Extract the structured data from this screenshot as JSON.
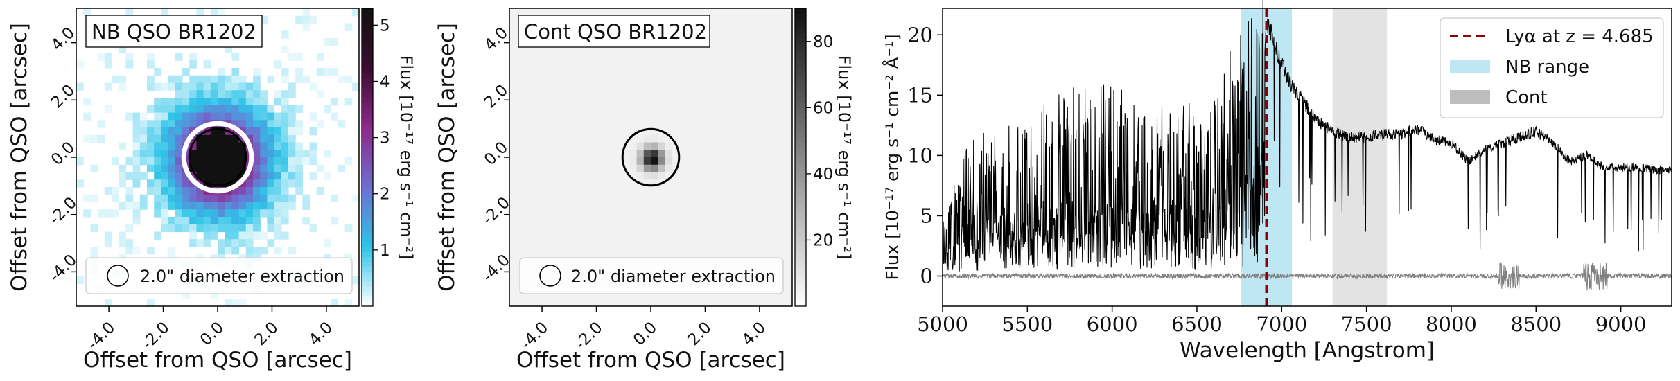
{
  "chart_data": [
    {
      "type": "heatmap",
      "panel_title": "NB QSO BR1202",
      "xlabel": "Offset from QSO [arcsec]",
      "ylabel": "Offset from QSO [arcsec]",
      "x_ticks": [
        "-4.0",
        "-2.0",
        "0.0",
        "2.0",
        "4.0"
      ],
      "y_ticks": [
        "-4.0",
        "-2.0",
        "0.0",
        "2.0",
        "4.0"
      ],
      "xlim": [
        -5.2,
        5.2
      ],
      "ylim": [
        -5.2,
        5.2
      ],
      "colorbar_label": "Flux [10⁻¹⁷ erg s⁻¹ cm⁻²]",
      "colorbar_ticks": [
        "1",
        "2",
        "3",
        "4",
        "5"
      ],
      "colorbar_range": [
        0,
        5.3
      ],
      "colormap": [
        "#ffffff",
        "#2ec4e8",
        "#6f6fd0",
        "#8b2a8a",
        "#3a0d2e",
        "#111111"
      ],
      "legend": "2.0\" diameter extraction",
      "aperture_diameter_arcsec": 2.0
    },
    {
      "type": "heatmap",
      "panel_title": "Cont QSO BR1202",
      "xlabel": "Offset from QSO [arcsec]",
      "ylabel": "Offset from QSO [arcsec]",
      "x_ticks": [
        "-4.0",
        "-2.0",
        "0.0",
        "2.0",
        "4.0"
      ],
      "y_ticks": [
        "-4.0",
        "-2.0",
        "0.0",
        "2.0",
        "4.0"
      ],
      "xlim": [
        -5.2,
        5.2
      ],
      "ylim": [
        -5.2,
        5.2
      ],
      "colorbar_label": "Flux [10⁻¹⁷ erg s⁻¹ cm⁻²]",
      "colorbar_ticks": [
        "20",
        "40",
        "60",
        "80"
      ],
      "colorbar_range": [
        0,
        90
      ],
      "colormap": [
        "#ffffff",
        "#111111"
      ],
      "legend": "2.0\" diameter extraction",
      "aperture_diameter_arcsec": 2.0
    },
    {
      "type": "line",
      "xlabel": "Wavelength [Angstrom]",
      "ylabel": "Flux [10⁻¹⁷ erg s⁻¹ cm⁻² Å⁻¹]",
      "xlim": [
        5000,
        9300
      ],
      "ylim": [
        -2.5,
        22.2
      ],
      "x_ticks": [
        "5000",
        "5500",
        "6000",
        "6500",
        "7000",
        "7500",
        "8000",
        "8500",
        "9000"
      ],
      "y_ticks": [
        "0",
        "5",
        "10",
        "15",
        "20"
      ],
      "legend": [
        {
          "label": "Lyα at z = 4.685",
          "color": "#8b0000",
          "style": "dashed"
        },
        {
          "label": "NB range",
          "color": "#bfe6f3",
          "style": "band"
        },
        {
          "label": "Cont",
          "color": "#bdbdbd",
          "style": "band"
        }
      ],
      "lya_wavelength": 6911,
      "nb_range": [
        6760,
        7060
      ],
      "cont_range": [
        7300,
        7590
      ],
      "series": [
        {
          "name": "spectrum",
          "color": "#000000",
          "x": [
            5000,
            5100,
            5200,
            5300,
            5400,
            5500,
            5600,
            5700,
            5800,
            5900,
            6000,
            6100,
            6200,
            6300,
            6400,
            6500,
            6600,
            6700,
            6800,
            6850,
            6900,
            6915,
            6930,
            6960,
            7000,
            7050,
            7100,
            7200,
            7300,
            7400,
            7500,
            7600,
            7700,
            7800,
            7900,
            8000,
            8100,
            8200,
            8300,
            8400,
            8500,
            8600,
            8700,
            8800,
            8900,
            9000,
            9100,
            9200,
            9300
          ],
          "y": [
            3.0,
            6.5,
            8.5,
            8.0,
            9.0,
            9.5,
            10.0,
            10.5,
            11.0,
            10.5,
            11.5,
            10.5,
            9.5,
            10.0,
            10.5,
            9.5,
            10.0,
            13.0,
            15.0,
            15.5,
            18.5,
            21.0,
            20.5,
            19.0,
            17.5,
            16.0,
            15.0,
            13.0,
            12.0,
            11.5,
            11.5,
            11.8,
            11.7,
            12.2,
            11.3,
            11.0,
            9.5,
            10.5,
            11.0,
            11.5,
            12.0,
            11.0,
            9.5,
            10.0,
            9.0,
            9.0,
            9.0,
            8.8,
            8.8
          ]
        },
        {
          "name": "noise",
          "color": "#808080",
          "x": [
            5000,
            6000,
            7000,
            8000,
            8300,
            8500,
            8800,
            9000,
            9300
          ],
          "y": [
            0.0,
            0.0,
            0.0,
            0.0,
            0.0,
            0.0,
            0.0,
            0.0,
            0.0
          ]
        }
      ]
    }
  ]
}
